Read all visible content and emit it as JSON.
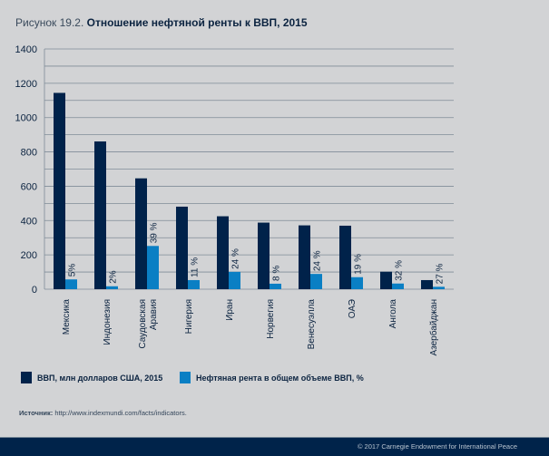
{
  "chart_data": {
    "type": "bar",
    "title_prefix": "Рисунок 19.2.",
    "title": "Отношение нефтяной ренты к ВВП, 2015",
    "categories": [
      "Мексика",
      "Индонезия",
      "Саудовская Аравия",
      "Нигерия",
      "Иран",
      "Норвегия",
      "Венесуэлла",
      "ОАЭ",
      "Ангола",
      "Азербайджан"
    ],
    "series": [
      {
        "name": "ВВП, млн долларов США, 2015",
        "color": "#00224a",
        "values": [
          1144,
          861,
          646,
          481,
          425,
          388,
          372,
          370,
          102,
          53
        ]
      },
      {
        "name": "Нефтяная рента в общем объеме ВВП, %",
        "color": "#0a7fc4",
        "values": [
          57,
          17,
          252,
          53,
          101,
          32,
          89,
          70,
          33,
          14
        ],
        "labels": [
          "5%",
          "2%",
          "39 %",
          "11 %",
          "24 %",
          "8 %",
          "24 %",
          "19 %",
          "32 %",
          "27 %"
        ]
      }
    ],
    "yticks": [
      0,
      200,
      400,
      600,
      800,
      1000,
      1200,
      1400
    ],
    "ylim": [
      0,
      1400
    ],
    "grid": true,
    "legend_position": "bottom-left"
  },
  "source_label": "Источник:",
  "source_text": "http://www.indexmundi.com/facts/indicators.",
  "copyright": "© 2017 Carnegie Endowment for International Peace"
}
